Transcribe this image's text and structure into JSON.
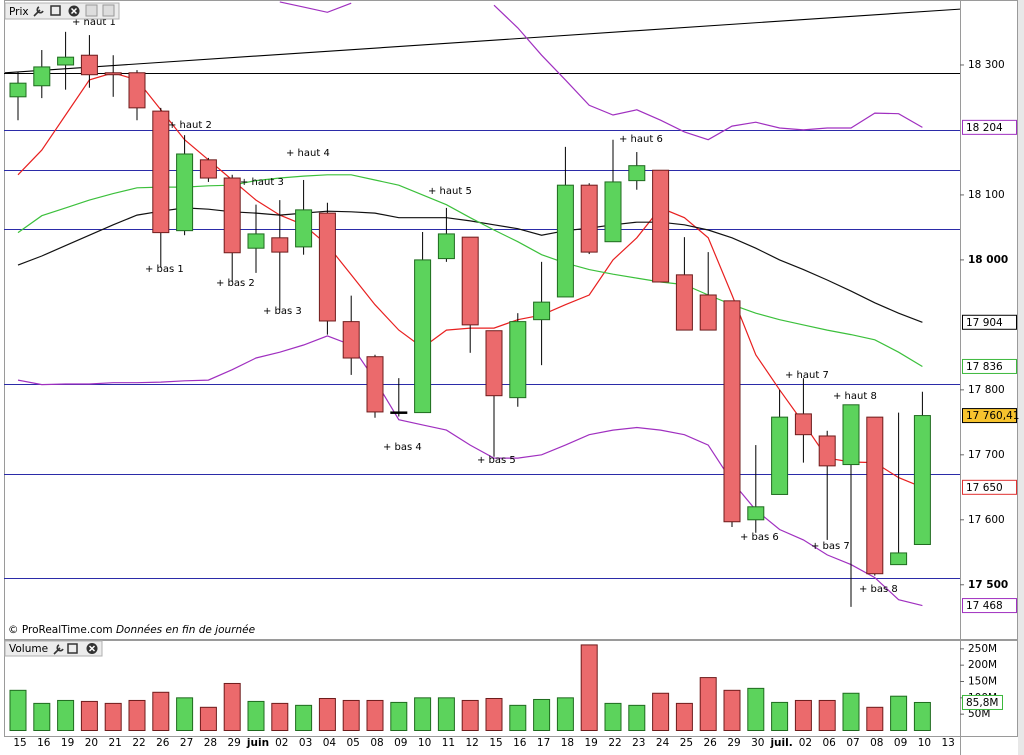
{
  "toolbar": {
    "title": "Prix",
    "volume_title": "Volume"
  },
  "footer": {
    "copyright": "© ProRealTime.com",
    "note": "Données en fin de journée"
  },
  "chart_data": [
    {
      "type": "candlestick",
      "categories": [
        "15",
        "16",
        "19",
        "20",
        "21",
        "22",
        "26",
        "27",
        "28",
        "29",
        "juin",
        "02",
        "03",
        "04",
        "05",
        "08",
        "09",
        "10",
        "11",
        "12",
        "15",
        "16",
        "17",
        "18",
        "19",
        "22",
        "23",
        "24",
        "25",
        "26",
        "29",
        "30",
        "juil.",
        "02",
        "06",
        "07",
        "08",
        "09",
        "10",
        "13"
      ],
      "open": [
        18251,
        18268,
        18300,
        18315,
        18288,
        18288,
        18229,
        18045,
        18154,
        18126,
        18018,
        18034,
        18020,
        18072,
        17905,
        17851,
        17766,
        17765,
        18002,
        18035,
        17891,
        17788,
        17908,
        17943,
        18115,
        18028,
        18122,
        18138,
        17977,
        17946,
        17937,
        17600,
        17639,
        17763,
        17729,
        17685,
        17758,
        17531,
        17562,
        null
      ],
      "high": [
        18289,
        18323,
        18351,
        18346,
        18315,
        18292,
        18234,
        18192,
        18157,
        18131,
        18085,
        18092,
        18123,
        18088,
        17945,
        17854,
        17818,
        18043,
        18080,
        18035,
        17891,
        17918,
        17997,
        18174,
        18118,
        18185,
        18166,
        18138,
        18035,
        18012,
        17937,
        17715,
        17800,
        17818,
        17737,
        17777,
        17758,
        17765,
        17797,
        null
      ],
      "low": [
        18215,
        18249,
        18262,
        18265,
        18251,
        18215,
        17988,
        18038,
        18120,
        17966,
        17980,
        17923,
        18008,
        17885,
        17823,
        17757,
        17759,
        17765,
        17997,
        17857,
        17697,
        17774,
        17838,
        17943,
        18009,
        18028,
        18108,
        17966,
        17892,
        17892,
        17589,
        17580,
        17639,
        17688,
        17569,
        17466,
        17514,
        17531,
        17562,
        null
      ],
      "close": [
        18272,
        18297,
        18312,
        18285,
        18285,
        18234,
        18042,
        18163,
        18126,
        18011,
        18040,
        18012,
        18077,
        17906,
        17849,
        17766,
        17766,
        18000,
        18040,
        17900,
        17791,
        17905,
        17935,
        18115,
        18012,
        18120,
        18145,
        17966,
        17892,
        17892,
        17597,
        17620,
        17758,
        17731,
        17683,
        17777,
        17517,
        17549,
        17760.41,
        null
      ],
      "up_color": "#5cd35c",
      "down_color": "#eb6a6c",
      "lines": [
        {
          "color": "#e82020",
          "values": [
            18131,
            18169,
            18223,
            18277,
            18288,
            18277,
            18231,
            18185,
            18154,
            18123,
            18092,
            18069,
            18054,
            18023,
            17977,
            17931,
            17892,
            17865,
            17892,
            17895,
            17895,
            17908,
            17915,
            17931,
            17946,
            18000,
            18034,
            18080,
            18065,
            18034,
            17946,
            17854,
            17800,
            17749,
            17695,
            17689,
            17688,
            17665,
            17650,
            null
          ]
        },
        {
          "color": "#111111",
          "values": [
            17992,
            18006,
            18022,
            18038,
            18054,
            18069,
            18075,
            18080,
            18078,
            18074,
            18072,
            18069,
            18072,
            18075,
            18074,
            18072,
            18065,
            18065,
            18065,
            18060,
            18054,
            18048,
            18038,
            18045,
            18049,
            18054,
            18058,
            18058,
            18054,
            18046,
            18034,
            18018,
            18000,
            17985,
            17969,
            17952,
            17934,
            17918,
            17904,
            null
          ]
        },
        {
          "color": "#3cc03c",
          "values": [
            18042,
            18068,
            18080,
            18092,
            18102,
            18111,
            18112,
            18112,
            18114,
            18115,
            18122,
            18126,
            18129,
            18131,
            18131,
            18123,
            18115,
            18100,
            18085,
            18065,
            18046,
            18028,
            18008,
            17995,
            17985,
            17978,
            17972,
            17966,
            17962,
            17946,
            17931,
            17918,
            17908,
            17900,
            17892,
            17885,
            17877,
            17858,
            17836,
            null
          ]
        },
        {
          "color": "#a030c0",
          "values": [
            null,
            null,
            null,
            null,
            null,
            null,
            null,
            null,
            null,
            null,
            null,
            18397,
            18389,
            18381,
            18395,
            null,
            null,
            null,
            null,
            null,
            18392,
            18357,
            18315,
            18277,
            18238,
            18223,
            18231,
            18215,
            18197,
            18185,
            18206,
            18212,
            18203,
            18200,
            18203,
            18203,
            18226,
            18225,
            18204,
            null
          ]
        },
        {
          "color": "#a030c0",
          "values": [
            17815,
            17808,
            17809,
            17809,
            17811,
            17811,
            17812,
            17814,
            17815,
            17831,
            17849,
            17858,
            17869,
            17883,
            17869,
            17815,
            17754,
            17746,
            17738,
            17715,
            17695,
            17695,
            17700,
            17715,
            17731,
            17738,
            17742,
            17738,
            17731,
            17715,
            17659,
            17615,
            17585,
            17569,
            17546,
            17531,
            17511,
            17477,
            17468,
            null
          ]
        }
      ],
      "hlines": [
        {
          "value": 18288,
          "color": "#000000"
        },
        {
          "value": 18200,
          "color": "#2b2ba8"
        },
        {
          "value": 18138,
          "color": "#2b2ba8"
        },
        {
          "value": 18048,
          "color": "#2b2ba8"
        },
        {
          "value": 17809,
          "color": "#2b2ba8"
        },
        {
          "value": 17671,
          "color": "#2b2ba8"
        },
        {
          "value": 17511,
          "color": "#2b2ba8"
        }
      ],
      "trendline": {
        "from": [
          -0.55,
          18288
        ],
        "to": [
          39.6,
          18386
        ],
        "color": "#000000"
      },
      "annotations": [
        "+ haut 1",
        "+ haut 2",
        "+ haut 3",
        "+ haut 4",
        "+ haut 5",
        "+ haut 6",
        "+ haut 7",
        "+ haut 8",
        "+ bas 1",
        "+ bas 2",
        "+ bas 3",
        "+ bas 4",
        "+ bas 5",
        "+ bas 6",
        "+ bas 7",
        "+ bas 8"
      ],
      "ylim": [
        17415,
        18400
      ],
      "yticks": [
        {
          "value": 18300,
          "label": "18 300"
        },
        {
          "value": 18100,
          "label": "18 100"
        },
        {
          "value": 18000,
          "label": "18 000",
          "bold": true
        },
        {
          "value": 17800,
          "label": "17 800"
        },
        {
          "value": 17700,
          "label": "17 700"
        },
        {
          "value": 17600,
          "label": "17 600"
        },
        {
          "value": 17500,
          "label": "17 500",
          "bold": true
        }
      ],
      "price_labels": [
        {
          "value": 18204,
          "label": "18 204",
          "color": "#a030c0",
          "fill": "#ffffff"
        },
        {
          "value": 17904,
          "label": "17 904",
          "color": "#000000",
          "fill": "#ffffff"
        },
        {
          "value": 17836,
          "label": "17 836",
          "color": "#3cb83c",
          "fill": "#ffffff"
        },
        {
          "value": 17760.41,
          "label": "17 760,41",
          "color": "#000000",
          "fill": "#f7c32e"
        },
        {
          "value": 17650,
          "label": "17 650",
          "color": "#e03030",
          "fill": "#ffffff"
        },
        {
          "value": 17468,
          "label": "17 468",
          "color": "#a030c0",
          "fill": "#ffffff"
        }
      ]
    },
    {
      "type": "bar",
      "values": [
        123,
        83,
        92,
        89,
        83,
        92,
        117,
        100,
        71,
        144,
        89,
        83,
        77,
        98,
        92,
        92,
        86,
        100,
        100,
        92,
        98,
        77,
        95,
        100,
        262,
        83,
        77,
        114,
        83,
        162,
        123,
        129,
        86,
        92,
        92,
        114,
        71,
        105,
        85.8,
        null
      ],
      "ylim": [
        0,
        274
      ],
      "yticks": [
        {
          "value": 250,
          "label": "250M"
        },
        {
          "value": 200,
          "label": "200M"
        },
        {
          "value": 150,
          "label": "150M"
        },
        {
          "value": 100,
          "label": "100M"
        },
        {
          "value": 50,
          "label": "50M"
        }
      ],
      "price_labels": [
        {
          "value": 85.8,
          "label": "85,8M",
          "color": "#3cb83c",
          "fill": "#ffffff"
        }
      ]
    }
  ]
}
